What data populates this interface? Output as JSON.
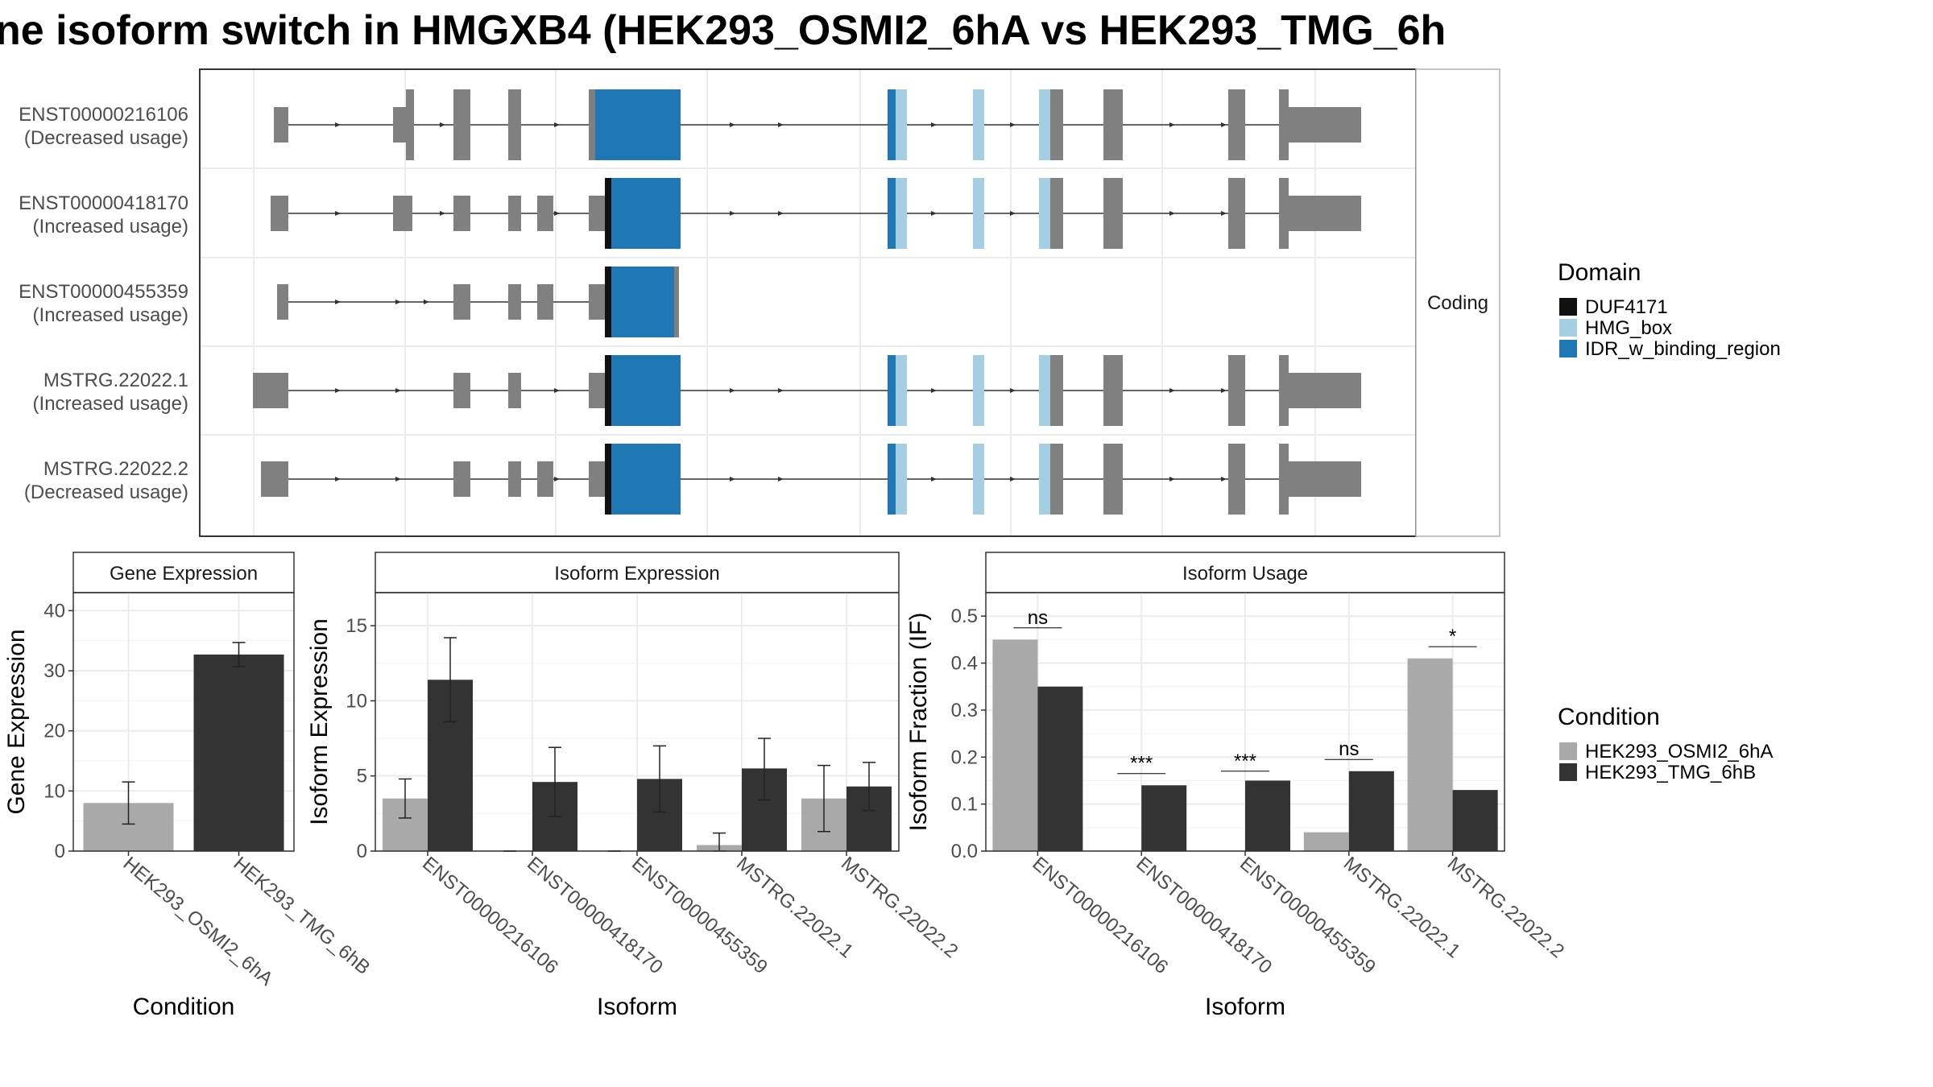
{
  "title": "ne isoform switch in HMGXB4 (HEK293_OSMI2_6hA vs HEK293_TMG_6h",
  "facet_label": "Coding",
  "colors": {
    "exon": "#808080",
    "DUF4171": "#111111",
    "HMG_box": "#a6cee3",
    "IDR_w_binding_region": "#1f78b4",
    "HEK293_OSMI2_6hA": "#a9a9a9",
    "HEK293_TMG_6hB": "#333333",
    "grid": "#ebebeb",
    "panel_border": "#333333"
  },
  "domain_legend": {
    "title": "Domain",
    "items": [
      "DUF4171",
      "HMG_box",
      "IDR_w_binding_region"
    ]
  },
  "condition_legend": {
    "title": "Condition",
    "items": [
      "HEK293_OSMI2_6hA",
      "HEK293_TMG_6hB"
    ]
  },
  "transcripts": [
    {
      "name": "ENST00000216106",
      "usage": "(Decreased usage)"
    },
    {
      "name": "ENST00000418170",
      "usage": "(Increased usage)"
    },
    {
      "name": "ENST00000455359",
      "usage": "(Increased usage)"
    },
    {
      "name": "MSTRG.22022.1",
      "usage": "(Increased usage)"
    },
    {
      "name": "MSTRG.22022.2",
      "usage": "(Decreased usage)"
    }
  ],
  "chart_data": [
    {
      "type": "bar",
      "title": "Gene Expression",
      "xlabel": "Condition",
      "ylabel": "Gene Expression",
      "ylim": [
        0,
        43
      ],
      "yticks": [
        0,
        10,
        20,
        30,
        40
      ],
      "categories": [
        "HEK293_OSMI2_6hA",
        "HEK293_TMG_6hB"
      ],
      "values": [
        8.0,
        32.7
      ],
      "error_low": [
        4.5,
        30.7
      ],
      "error_high": [
        11.5,
        34.7
      ]
    },
    {
      "type": "bar",
      "title": "Isoform Expression",
      "xlabel": "Isoform",
      "ylabel": "Isoform Expression",
      "ylim": [
        0,
        17.2
      ],
      "yticks": [
        0,
        5,
        10,
        15
      ],
      "categories": [
        "ENST00000216106",
        "ENST00000418170",
        "ENST00000455359",
        "MSTRG.22022.1",
        "MSTRG.22022.2"
      ],
      "series": [
        {
          "name": "HEK293_OSMI2_6hA",
          "values": [
            3.5,
            0.0,
            0.0,
            0.4,
            3.5
          ],
          "error_low": [
            2.2,
            0.0,
            0.0,
            0.0,
            1.3
          ],
          "error_high": [
            4.8,
            0.0,
            0.0,
            1.2,
            5.7
          ]
        },
        {
          "name": "HEK293_TMG_6hB",
          "values": [
            11.4,
            4.6,
            4.8,
            5.5,
            4.3
          ],
          "error_low": [
            8.6,
            2.3,
            2.6,
            3.4,
            2.7
          ],
          "error_high": [
            14.2,
            6.9,
            7.0,
            7.5,
            5.9
          ]
        }
      ]
    },
    {
      "type": "bar",
      "title": "Isoform Usage",
      "xlabel": "Isoform",
      "ylabel": "Isoform Fraction (IF)",
      "ylim": [
        0,
        0.55
      ],
      "yticks": [
        0.0,
        0.1,
        0.2,
        0.3,
        0.4,
        0.5
      ],
      "ytick_labels": [
        "0.0",
        "0.1",
        "0.2",
        "0.3",
        "0.4",
        "0.5"
      ],
      "categories": [
        "ENST00000216106",
        "ENST00000418170",
        "ENST00000455359",
        "MSTRG.22022.1",
        "MSTRG.22022.2"
      ],
      "series": [
        {
          "name": "HEK293_OSMI2_6hA",
          "values": [
            0.45,
            0.0,
            0.0,
            0.04,
            0.41
          ]
        },
        {
          "name": "HEK293_TMG_6hB",
          "values": [
            0.35,
            0.14,
            0.15,
            0.17,
            0.13
          ]
        }
      ],
      "significance": [
        "ns",
        "***",
        "***",
        "ns",
        "*"
      ],
      "significance_y": [
        0.475,
        0.165,
        0.17,
        0.195,
        0.435
      ]
    }
  ]
}
